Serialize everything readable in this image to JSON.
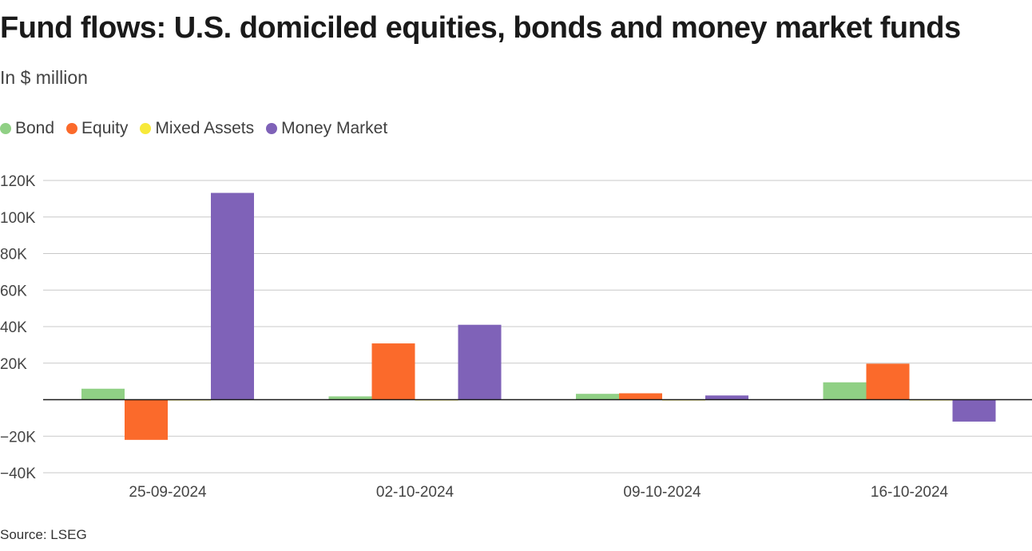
{
  "title": "Fund flows: U.S. domiciled equities, bonds and money market funds",
  "subtitle": "In $ million",
  "source": "Source: LSEG",
  "legend": [
    {
      "label": "Bond",
      "color": "#90d085"
    },
    {
      "label": "Equity",
      "color": "#fb6a2b"
    },
    {
      "label": "Mixed Assets",
      "color": "#f7e93a"
    },
    {
      "label": "Money Market",
      "color": "#7f62b8"
    }
  ],
  "chart_data": {
    "type": "bar",
    "title": "Fund flows: U.S. domiciled equities, bonds and money market funds",
    "subtitle": "In $ million",
    "categories": [
      "25-09-2024",
      "02-10-2024",
      "09-10-2024",
      "16-10-2024"
    ],
    "series": [
      {
        "name": "Bond",
        "color": "#90d085",
        "values": [
          6000,
          1800,
          3200,
          9500
        ]
      },
      {
        "name": "Equity",
        "color": "#fb6a2b",
        "values": [
          -22000,
          30800,
          3500,
          19700
        ]
      },
      {
        "name": "Mixed Assets",
        "color": "#f7e93a",
        "values": [
          -300,
          -200,
          -300,
          -300
        ]
      },
      {
        "name": "Money Market",
        "color": "#7f62b8",
        "values": [
          113200,
          41000,
          2300,
          -12000
        ]
      }
    ],
    "ylim": [
      -40000,
      120000
    ],
    "yticks": [
      120000,
      100000,
      80000,
      60000,
      40000,
      20000,
      0,
      -20000,
      -40000
    ],
    "ytick_labels": [
      "120K",
      "100K",
      "80K",
      "60K",
      "40K",
      "20K",
      "",
      "−20K",
      "−40K"
    ],
    "grid": true,
    "legend_position": "top-left"
  }
}
